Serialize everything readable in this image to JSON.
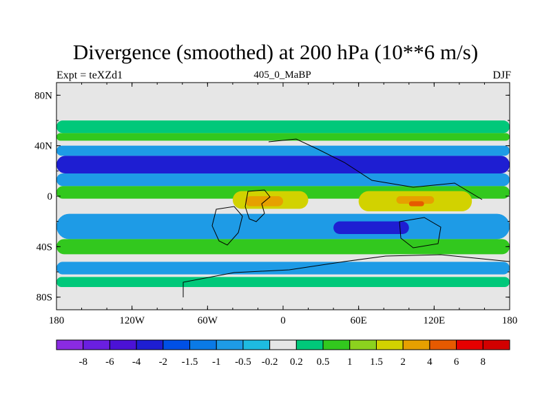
{
  "title": "Divergence (smoothed) at 200 hPa (10**6 m/s)",
  "left_label": "Expt = teXZd1",
  "center_label": "405_0_MaBP",
  "right_label": "DJF",
  "chart_data": {
    "type": "heatmap",
    "title": "Divergence (smoothed) at 200 hPa (10**6 m/s)",
    "subtitle": "405_0_MaBP",
    "x_axis": {
      "range": [
        -180,
        180
      ],
      "ticks": [
        -180,
        -120,
        -60,
        0,
        60,
        120,
        180
      ],
      "tick_labels": [
        "180",
        "120W",
        "60W",
        "0",
        "60E",
        "120E",
        "180"
      ]
    },
    "y_axis": {
      "range": [
        -90,
        90
      ],
      "ticks": [
        80,
        40,
        0,
        -40,
        -80
      ],
      "tick_labels": [
        "80N",
        "40N",
        "0",
        "40S",
        "80S"
      ]
    },
    "legend_levels": [
      "-8",
      "-6",
      "-4",
      "-2",
      "-1.5",
      "-1",
      "-0.5",
      "-0.2",
      "0.2",
      "0.5",
      "1",
      "1.5",
      "2",
      "4",
      "6",
      "8"
    ],
    "legend_colors": [
      "#8a2be2",
      "#6a1fe0",
      "#4b12d6",
      "#1e1ed2",
      "#0050e6",
      "#0a7ae6",
      "#1e9be6",
      "#1ebbe0",
      "#e6e6e6",
      "#00c87a",
      "#32c81e",
      "#8cd21e",
      "#d2d200",
      "#e6a000",
      "#e65a00",
      "#e60000",
      "#d20000"
    ],
    "bands": [
      {
        "lat_top": 60,
        "lat_bottom": 50,
        "lon_start": -180,
        "lon_end": 180,
        "level": "0.5",
        "color": "#00c87a"
      },
      {
        "lat_top": 50,
        "lat_bottom": 44,
        "lon_start": -180,
        "lon_end": 180,
        "level": "1",
        "color": "#32c81e"
      },
      {
        "lat_top": 40,
        "lat_bottom": 32,
        "lon_start": -180,
        "lon_end": 180,
        "level": "-1",
        "color": "#1e9be6"
      },
      {
        "lat_top": 32,
        "lat_bottom": 18,
        "lon_start": -180,
        "lon_end": 180,
        "level": "-2",
        "color": "#1e1ed2"
      },
      {
        "lat_top": 18,
        "lat_bottom": 8,
        "lon_start": -180,
        "lon_end": 180,
        "level": "-1",
        "color": "#1e9be6"
      },
      {
        "lat_top": 8,
        "lat_bottom": -2,
        "lon_start": -180,
        "lon_end": 180,
        "level": "1",
        "color": "#32c81e"
      },
      {
        "lat_top": 4,
        "lat_bottom": -10,
        "lon_start": -40,
        "lon_end": 20,
        "level": "2",
        "color": "#d2d200"
      },
      {
        "lat_top": 0,
        "lat_bottom": -8,
        "lon_start": -30,
        "lon_end": 0,
        "level": "4",
        "color": "#e6a000"
      },
      {
        "lat_top": 4,
        "lat_bottom": -12,
        "lon_start": 60,
        "lon_end": 150,
        "level": "2",
        "color": "#d2d200"
      },
      {
        "lat_top": 0,
        "lat_bottom": -6,
        "lon_start": 90,
        "lon_end": 120,
        "level": "4",
        "color": "#e6a000"
      },
      {
        "lat_top": -4,
        "lat_bottom": -8,
        "lon_start": 100,
        "lon_end": 112,
        "level": "6",
        "color": "#e65a00"
      },
      {
        "lat_top": -14,
        "lat_bottom": -34,
        "lon_start": -180,
        "lon_end": 180,
        "level": "-1",
        "color": "#1e9be6"
      },
      {
        "lat_top": -20,
        "lat_bottom": -30,
        "lon_start": 40,
        "lon_end": 100,
        "level": "-2",
        "color": "#1e1ed2"
      },
      {
        "lat_top": -34,
        "lat_bottom": -46,
        "lon_start": -180,
        "lon_end": 180,
        "level": "1",
        "color": "#32c81e"
      },
      {
        "lat_top": -52,
        "lat_bottom": -62,
        "lon_start": -180,
        "lon_end": 180,
        "level": "-1",
        "color": "#1e9be6"
      },
      {
        "lat_top": -64,
        "lat_bottom": -72,
        "lon_start": -180,
        "lon_end": 180,
        "level": "0.5",
        "color": "#00c87a"
      }
    ]
  }
}
